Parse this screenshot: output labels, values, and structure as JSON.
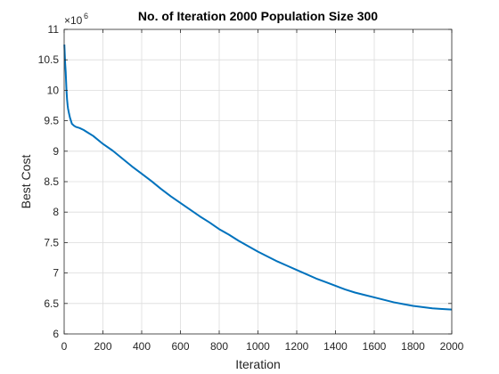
{
  "chart_data": {
    "type": "line",
    "title": "No. of Iteration 2000 Population Size 300",
    "xlabel": "Iteration",
    "ylabel": "Best Cost",
    "xlim": [
      0,
      2000
    ],
    "ylim": [
      6000000,
      11000000
    ],
    "xticks": [
      0,
      200,
      400,
      600,
      800,
      1000,
      1200,
      1400,
      1600,
      1800,
      2000
    ],
    "yticks": [
      6,
      6.5,
      7,
      7.5,
      8,
      8.5,
      9,
      9.5,
      10,
      10.5,
      11
    ],
    "y_exponent": {
      "base": "×10",
      "power": "6"
    },
    "grid": true,
    "line_color": "#0072BD",
    "series": [
      {
        "x": [
          1,
          3,
          5,
          8,
          10,
          12,
          15,
          18,
          20,
          25,
          30,
          35,
          40,
          50,
          60,
          80,
          100,
          120,
          150,
          200,
          250,
          300,
          350,
          400,
          450,
          500,
          550,
          600,
          650,
          700,
          750,
          800,
          850,
          900,
          950,
          1000,
          1050,
          1100,
          1150,
          1200,
          1250,
          1300,
          1350,
          1400,
          1450,
          1500,
          1550,
          1600,
          1650,
          1700,
          1750,
          1800,
          1850,
          1900,
          1950,
          2000
        ],
        "y": [
          10750000,
          10600000,
          10450000,
          10300000,
          10150000,
          10000000,
          9850000,
          9750000,
          9700000,
          9620000,
          9550000,
          9500000,
          9450000,
          9420000,
          9400000,
          9380000,
          9350000,
          9310000,
          9250000,
          9120000,
          9010000,
          8880000,
          8750000,
          8630000,
          8510000,
          8380000,
          8260000,
          8150000,
          8040000,
          7930000,
          7830000,
          7720000,
          7630000,
          7530000,
          7440000,
          7350000,
          7270000,
          7190000,
          7120000,
          7050000,
          6980000,
          6910000,
          6850000,
          6790000,
          6730000,
          6680000,
          6640000,
          6600000,
          6560000,
          6520000,
          6490000,
          6460000,
          6440000,
          6420000,
          6410000,
          6400000
        ]
      }
    ]
  }
}
